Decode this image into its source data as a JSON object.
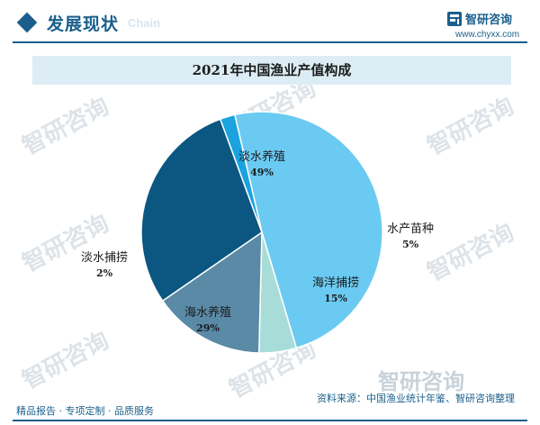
{
  "header": {
    "section_title": "发展现状",
    "section_subtitle": "Chain",
    "logo_name": "智研咨询",
    "logo_url": "www.chyxx.com"
  },
  "watermark": {
    "text": "智研咨询"
  },
  "footer": {
    "left_text": "精品报告 · 专项定制 · 品质服务",
    "source_text": "资料来源：中国渔业统计年鉴、智研咨询整理"
  },
  "colors": {
    "brand": "#1a5f8c",
    "title_bar": "#dcedf6"
  },
  "chart_data": {
    "type": "pie",
    "title": "2021年中国渔业产值构成",
    "slices": [
      {
        "label": "淡水养殖",
        "value": 49,
        "value_label": "49%",
        "color": "#6bcaf2"
      },
      {
        "label": "水产苗种",
        "value": 5,
        "value_label": "5%",
        "color": "#a8dcd9"
      },
      {
        "label": "海洋捕捞",
        "value": 15,
        "value_label": "15%",
        "color": "#5a8aa6"
      },
      {
        "label": "海水养殖",
        "value": 29,
        "value_label": "29%",
        "color": "#0c5781"
      },
      {
        "label": "淡水捕捞",
        "value": 2,
        "value_label": "2%",
        "color": "#1aa3de"
      }
    ]
  }
}
